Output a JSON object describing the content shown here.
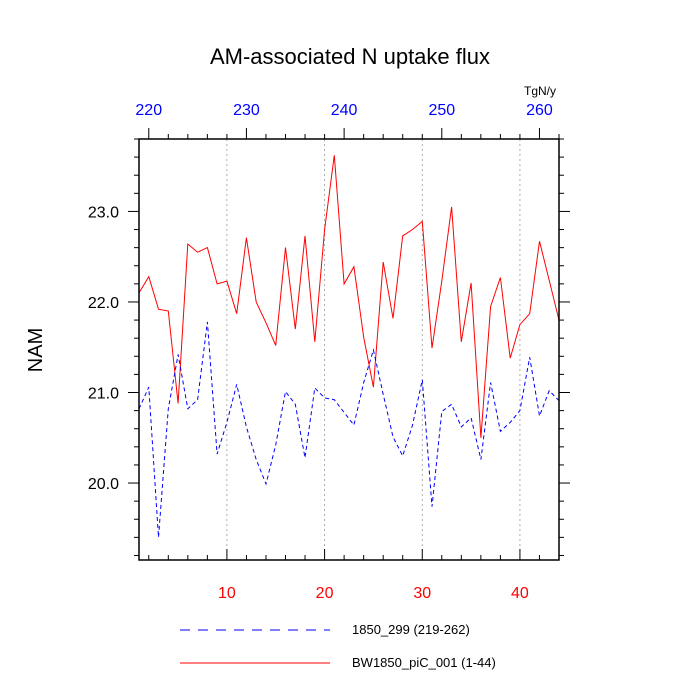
{
  "chart_data": {
    "type": "line",
    "title": "AM-associated N uptake flux",
    "ylabel": "NAM",
    "top_axis_units": "TgN/y",
    "xlim": [
      1,
      44
    ],
    "ylim": [
      19.15,
      23.8
    ],
    "x_ticks": [
      10,
      20,
      30,
      40
    ],
    "x_tick_labels": [
      "10",
      "20",
      "30",
      "40"
    ],
    "top_ticks": [
      220,
      230,
      240,
      250,
      260
    ],
    "top_tick_labels": [
      "220",
      "230",
      "240",
      "250",
      "260"
    ],
    "top_offset": 218,
    "y_ticks": [
      20.0,
      21.0,
      22.0,
      23.0
    ],
    "y_tick_labels": [
      "20.0",
      "21.0",
      "22.0",
      "23.0"
    ],
    "vertical_gridlines": true,
    "colors": {
      "series_red": "#ff0000",
      "series_blue": "#0000ff",
      "grid": "#999999"
    },
    "series": [
      {
        "name": "BW1850_piC_001 (1-44)",
        "color": "#ff0000",
        "style": "solid",
        "x": [
          1,
          2,
          3,
          4,
          5,
          6,
          7,
          8,
          9,
          10,
          11,
          12,
          13,
          14,
          15,
          16,
          17,
          18,
          19,
          20,
          21,
          22,
          23,
          24,
          25,
          26,
          27,
          28,
          29,
          30,
          31,
          32,
          33,
          34,
          35,
          36,
          37,
          38,
          39,
          40,
          41,
          42,
          43,
          44
        ],
        "values": [
          22.1,
          22.28,
          21.92,
          21.9,
          20.88,
          22.64,
          22.55,
          22.6,
          22.2,
          22.23,
          21.87,
          22.71,
          22.0,
          21.77,
          21.52,
          22.6,
          21.7,
          22.73,
          21.56,
          22.8,
          23.62,
          22.2,
          22.39,
          21.61,
          21.06,
          22.44,
          21.82,
          22.73,
          22.8,
          22.89,
          21.49,
          22.23,
          23.05,
          21.56,
          22.21,
          20.5,
          21.95,
          22.27,
          21.38,
          21.75,
          21.87,
          22.67,
          22.24,
          21.8
        ]
      },
      {
        "name": "1850_299 (219-262)",
        "color": "#0000ff",
        "style": "dashed",
        "x": [
          1,
          2,
          3,
          4,
          5,
          6,
          7,
          8,
          9,
          10,
          11,
          12,
          13,
          14,
          15,
          16,
          17,
          18,
          19,
          20,
          21,
          22,
          23,
          24,
          25,
          26,
          27,
          28,
          29,
          30,
          31,
          32,
          33,
          34,
          35,
          36,
          37,
          38,
          39,
          40,
          41,
          42,
          43,
          44
        ],
        "values": [
          20.82,
          21.06,
          19.4,
          20.82,
          21.42,
          20.82,
          20.92,
          21.78,
          20.32,
          20.67,
          21.09,
          20.62,
          20.26,
          19.99,
          20.42,
          21.01,
          20.87,
          20.28,
          21.05,
          20.94,
          20.92,
          20.78,
          20.64,
          21.11,
          21.47,
          20.98,
          20.51,
          20.3,
          20.64,
          21.14,
          19.74,
          20.79,
          20.87,
          20.62,
          20.72,
          20.26,
          21.11,
          20.57,
          20.67,
          20.8,
          21.39,
          20.74,
          21.02,
          20.91
        ]
      }
    ],
    "legend": [
      {
        "label": "1850_299 (219-262)",
        "color": "#0000ff",
        "style": "dashed"
      },
      {
        "label": "BW1850_piC_001 (1-44)",
        "color": "#ff0000",
        "style": "solid"
      }
    ]
  }
}
